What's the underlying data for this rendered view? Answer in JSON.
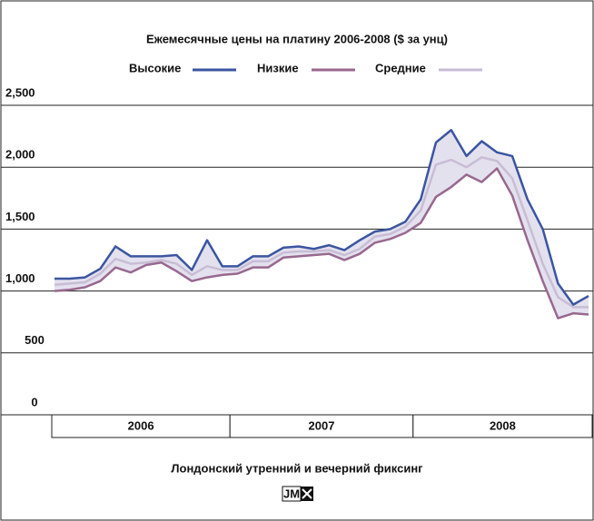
{
  "chart_data": {
    "type": "line",
    "title": "Ежемесячные цены на платину 2006-2008 ($ за унц)",
    "subtitle": "Лондонский утренний и вечерний фиксинг",
    "logo": "JM",
    "years": [
      "2006",
      "2007",
      "2008"
    ],
    "months_per_year": 12,
    "series": [
      {
        "name": "Высокие",
        "color": "#3b55a0",
        "values": [
          1100,
          1100,
          1110,
          1180,
          1360,
          1280,
          1280,
          1280,
          1290,
          1170,
          1410,
          1200,
          1200,
          1280,
          1280,
          1350,
          1360,
          1340,
          1370,
          1330,
          1410,
          1480,
          1500,
          1560,
          1740,
          2200,
          2300,
          2090,
          2210,
          2120,
          2090,
          1740,
          1500,
          1060,
          890,
          960
        ]
      },
      {
        "name": "Низкие",
        "color": "#98688f",
        "values": [
          1000,
          1010,
          1030,
          1080,
          1190,
          1150,
          1210,
          1230,
          1160,
          1080,
          1110,
          1130,
          1140,
          1190,
          1190,
          1270,
          1280,
          1290,
          1300,
          1250,
          1300,
          1390,
          1420,
          1470,
          1550,
          1760,
          1840,
          1940,
          1880,
          1990,
          1770,
          1410,
          1080,
          780,
          820,
          810
        ]
      },
      {
        "name": "Средние",
        "color": "#c8bdd5",
        "values": [
          1050,
          1060,
          1070,
          1140,
          1260,
          1220,
          1230,
          1250,
          1220,
          1130,
          1200,
          1170,
          1170,
          1240,
          1240,
          1310,
          1320,
          1320,
          1330,
          1290,
          1340,
          1440,
          1460,
          1520,
          1650,
          2020,
          2060,
          2000,
          2080,
          2050,
          1910,
          1570,
          1220,
          950,
          870,
          870
        ]
      }
    ],
    "band_color": "#e4e1ee",
    "ylim": [
      0,
      2500
    ],
    "yticks": [
      0,
      500,
      {
        "value": 1000,
        "label": "1,000"
      },
      {
        "value": 1500,
        "label": "1,500"
      },
      {
        "value": 2000,
        "label": "2,000"
      },
      {
        "value": 2500,
        "label": "2,500"
      }
    ],
    "grid": true
  }
}
